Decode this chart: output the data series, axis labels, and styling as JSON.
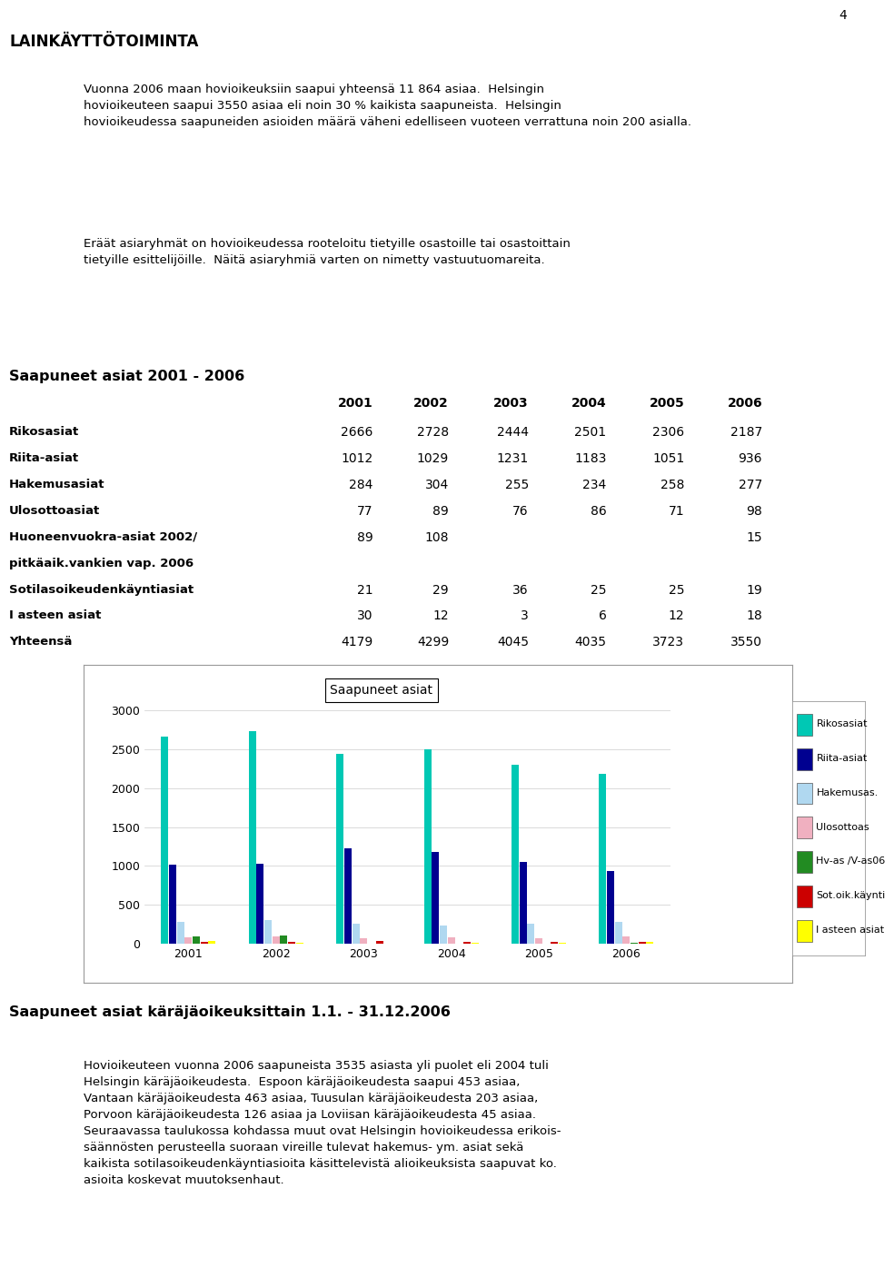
{
  "page_number": "4",
  "title_main": "LAINKÄYTTÖTOIMINTA",
  "para1_lines": [
    "Vuonna 2006 maan hovioikeuksiin saapui yhteensä 11 864 asiaa.  Helsingin",
    "hovioikeuteen saapui 3550 asiaa eli noin 30 % kaikista saapuneista.  Helsingin",
    "hovioikeudessa saapuneiden asioiden määrä väheni edelliseen vuoteen verrattuna noin 200 asialla."
  ],
  "para2_lines": [
    "Eräät asiaryhmät on hovioikeudessa rooteloitu tietyille osastoille tai osastoittain",
    "tietyille esittelijöille.  Näitä asiaryhmiä varten on nimetty vastuutuomareita."
  ],
  "table_title": "Saapuneet asiat 2001 - 2006",
  "table_years": [
    "2001",
    "2002",
    "2003",
    "2004",
    "2005",
    "2006"
  ],
  "table_rows": [
    {
      "label": "Rikosasiat",
      "bold": true,
      "values": [
        2666,
        2728,
        2444,
        2501,
        2306,
        2187
      ]
    },
    {
      "label": "Riita-asiat",
      "bold": true,
      "values": [
        1012,
        1029,
        1231,
        1183,
        1051,
        936
      ]
    },
    {
      "label": "Hakemusasiat",
      "bold": true,
      "values": [
        284,
        304,
        255,
        234,
        258,
        277
      ]
    },
    {
      "label": "Ulosottoasiat",
      "bold": true,
      "values": [
        77,
        89,
        76,
        86,
        71,
        98
      ]
    },
    {
      "label": "Huoneenvuokra-asiat 2002/",
      "bold": true,
      "values": [
        89,
        108,
        null,
        null,
        null,
        15
      ]
    },
    {
      "label": "pitkäaik.vankien vap. 2006",
      "bold": true,
      "values": [
        null,
        null,
        null,
        null,
        null,
        null
      ]
    },
    {
      "label": "Sotilasoikeudenkäyntiasiat",
      "bold": true,
      "values": [
        21,
        29,
        36,
        25,
        25,
        19
      ]
    },
    {
      "label": "I asteen asiat",
      "bold": true,
      "values": [
        30,
        12,
        3,
        6,
        12,
        18
      ]
    },
    {
      "label": "Yhteensä",
      "bold": true,
      "values": [
        4179,
        4299,
        4045,
        4035,
        3723,
        3550
      ]
    }
  ],
  "chart_title": "Saapuneet asiat",
  "chart_categories": [
    2001,
    2002,
    2003,
    2004,
    2005,
    2006
  ],
  "chart_series": [
    {
      "name": "Rikosasiat",
      "color": "#00C8B4",
      "values": [
        2666,
        2728,
        2444,
        2501,
        2306,
        2187
      ]
    },
    {
      "name": "Riita-asiat",
      "color": "#000090",
      "values": [
        1012,
        1029,
        1231,
        1183,
        1051,
        936
      ]
    },
    {
      "name": "Hakemusas.",
      "color": "#B0D8F0",
      "values": [
        284,
        304,
        255,
        234,
        258,
        277
      ]
    },
    {
      "name": "Ulosottoas",
      "color": "#F0B0C0",
      "values": [
        77,
        89,
        76,
        86,
        71,
        98
      ]
    },
    {
      "name": "Hv-as /V-as06",
      "color": "#228B22",
      "values": [
        89,
        108,
        0,
        0,
        0,
        15
      ]
    },
    {
      "name": "Sot.oik.käynti",
      "color": "#CC0000",
      "values": [
        21,
        29,
        36,
        25,
        25,
        19
      ]
    },
    {
      "name": "I asteen asiat",
      "color": "#FFFF00",
      "values": [
        30,
        12,
        3,
        6,
        12,
        18
      ]
    }
  ],
  "chart_ylim": [
    0,
    3000
  ],
  "chart_yticks": [
    0,
    500,
    1000,
    1500,
    2000,
    2500,
    3000
  ],
  "section2_title": "Saapuneet asiat käräjäoikeuksittain 1.1. - 31.12.2006",
  "para3_lines": [
    "Hovioikeuteen vuonna 2006 saapuneista 3535 asiasta yli puolet eli 2004 tuli",
    "Helsingin käräjäoikeudesta.  Espoon käräjäoikeudesta saapui 453 asiaa,",
    "Vantaan käräjäoikeudesta 463 asiaa, Tuusulan käräjäoikeudesta 203 asiaa,",
    "Porvoon käräjäoikeudesta 126 asiaa ja Loviisan käräjäoikeudesta 45 asiaa.",
    "Seuraavassa taulukossa kohdassa muut ovat Helsingin hovioikeudessa erikois-",
    "säännösten perusteella suoraan vireille tulevat hakemus- ym. asiat sekä",
    "kaikista sotilasoikeudenkäyntiasioita käsittelevistä alioikeuksista saapuvat ko.",
    "asioita koskevat muutoksenhaut."
  ]
}
